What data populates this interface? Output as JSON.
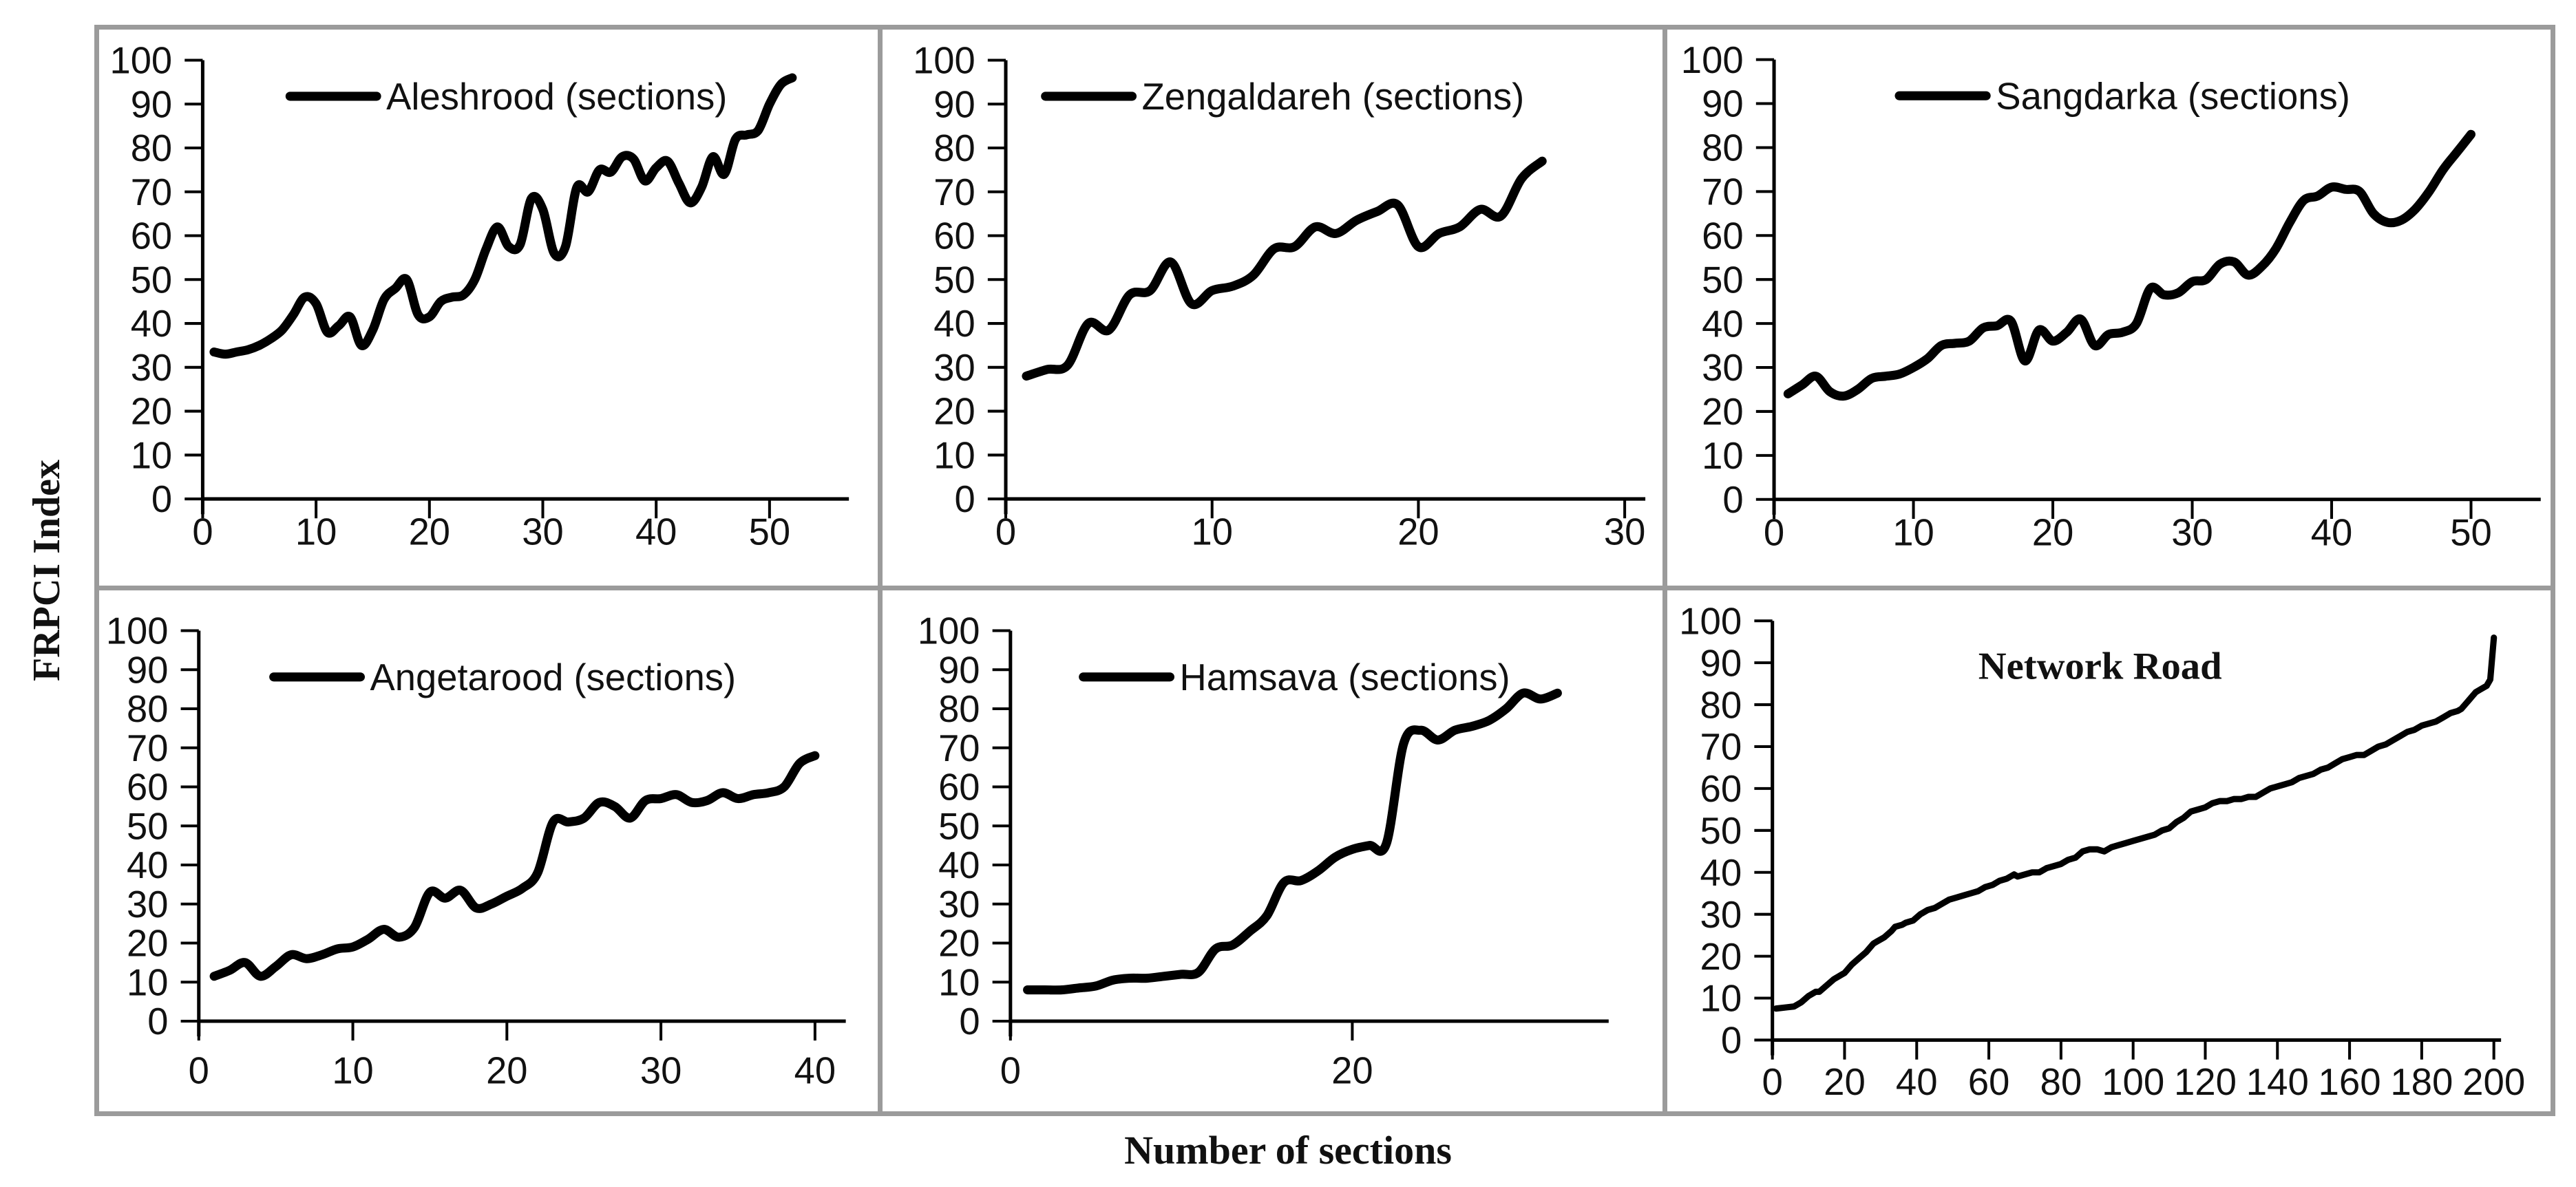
{
  "figure": {
    "ylabel": "FRPCI Index",
    "xlabel": "Number of sections",
    "background_color": "#ffffff",
    "panel_border_color": "#9b9b9b",
    "line_color": "#000000"
  },
  "chart_data": [
    {
      "type": "line",
      "legend": "Aleshrood (sections)",
      "legend_position": "top-center",
      "xlim": [
        0,
        57
      ],
      "ylim": [
        0,
        100
      ],
      "x_ticks": [
        0,
        10,
        20,
        30,
        40,
        50
      ],
      "y_tick_step": 10,
      "grid": false,
      "points": [
        [
          1,
          33.5
        ],
        [
          2,
          33
        ],
        [
          3,
          33.5
        ],
        [
          4,
          34
        ],
        [
          5,
          35
        ],
        [
          6,
          36.5
        ],
        [
          7,
          38.5
        ],
        [
          8,
          42
        ],
        [
          9,
          46
        ],
        [
          10,
          44.5
        ],
        [
          11,
          38
        ],
        [
          12,
          39.5
        ],
        [
          13,
          41.5
        ],
        [
          14,
          35
        ],
        [
          15,
          38.5
        ],
        [
          16,
          45.5
        ],
        [
          17,
          48
        ],
        [
          18,
          50
        ],
        [
          19,
          42
        ],
        [
          20,
          41.5
        ],
        [
          21,
          45
        ],
        [
          22,
          46
        ],
        [
          23,
          46.5
        ],
        [
          24,
          50
        ],
        [
          25,
          57
        ],
        [
          26,
          62
        ],
        [
          27,
          57.5
        ],
        [
          28,
          58
        ],
        [
          29,
          68.5
        ],
        [
          30,
          66
        ],
        [
          31,
          56
        ],
        [
          32,
          57.5
        ],
        [
          33,
          71
        ],
        [
          34,
          70
        ],
        [
          35,
          75
        ],
        [
          36,
          74.5
        ],
        [
          37,
          78
        ],
        [
          38,
          77.5
        ],
        [
          39,
          72.5
        ],
        [
          40,
          75.5
        ],
        [
          41,
          77
        ],
        [
          42,
          72
        ],
        [
          43,
          67.5
        ],
        [
          44,
          71
        ],
        [
          45,
          78
        ],
        [
          46,
          74
        ],
        [
          47,
          82
        ],
        [
          48,
          83
        ],
        [
          49,
          84
        ],
        [
          50,
          90
        ],
        [
          51,
          94.5
        ],
        [
          52,
          96
        ]
      ]
    },
    {
      "type": "line",
      "legend": "Zengaldareh (sections)",
      "legend_position": "top-center",
      "xlim": [
        0,
        31
      ],
      "ylim": [
        0,
        100
      ],
      "x_ticks": [
        0,
        10,
        20,
        30
      ],
      "y_tick_step": 10,
      "grid": false,
      "points": [
        [
          1,
          28
        ],
        [
          2,
          29.5
        ],
        [
          3,
          30.5
        ],
        [
          4,
          40
        ],
        [
          5,
          38.5
        ],
        [
          6,
          46.5
        ],
        [
          7,
          47.5
        ],
        [
          8,
          54
        ],
        [
          9,
          44.5
        ],
        [
          10,
          47.5
        ],
        [
          11,
          48.5
        ],
        [
          12,
          51
        ],
        [
          13,
          57
        ],
        [
          14,
          57.5
        ],
        [
          15,
          62
        ],
        [
          16,
          60.5
        ],
        [
          17,
          63.5
        ],
        [
          18,
          65.5
        ],
        [
          19,
          67
        ],
        [
          20,
          57.5
        ],
        [
          21,
          60.5
        ],
        [
          22,
          62
        ],
        [
          23,
          66
        ],
        [
          24,
          64.5
        ],
        [
          25,
          73
        ],
        [
          26,
          77
        ]
      ]
    },
    {
      "type": "line",
      "legend": "Sangdarka (sections)",
      "legend_position": "top-center",
      "xlim": [
        0,
        55
      ],
      "ylim": [
        0,
        100
      ],
      "x_ticks": [
        0,
        10,
        20,
        30,
        40,
        50
      ],
      "y_tick_step": 10,
      "grid": false,
      "points": [
        [
          1,
          24
        ],
        [
          2,
          26
        ],
        [
          3,
          28
        ],
        [
          4,
          24.5
        ],
        [
          5,
          23.5
        ],
        [
          6,
          25
        ],
        [
          7,
          27.5
        ],
        [
          8,
          28
        ],
        [
          9,
          28.5
        ],
        [
          10,
          30
        ],
        [
          11,
          32
        ],
        [
          12,
          35
        ],
        [
          13,
          35.5
        ],
        [
          14,
          36
        ],
        [
          15,
          39
        ],
        [
          16,
          39.5
        ],
        [
          17,
          40.5
        ],
        [
          18,
          31.5
        ],
        [
          19,
          38.5
        ],
        [
          20,
          36
        ],
        [
          21,
          38
        ],
        [
          22,
          41
        ],
        [
          23,
          35
        ],
        [
          24,
          37.5
        ],
        [
          25,
          38
        ],
        [
          26,
          40
        ],
        [
          27,
          48
        ],
        [
          28,
          46.5
        ],
        [
          29,
          47
        ],
        [
          30,
          49.5
        ],
        [
          31,
          50
        ],
        [
          32,
          53.5
        ],
        [
          33,
          54
        ],
        [
          34,
          51
        ],
        [
          35,
          53
        ],
        [
          36,
          57
        ],
        [
          37,
          63
        ],
        [
          38,
          68
        ],
        [
          39,
          69
        ],
        [
          40,
          71
        ],
        [
          41,
          70.5
        ],
        [
          42,
          70
        ],
        [
          43,
          65
        ],
        [
          44,
          63
        ],
        [
          45,
          63.5
        ],
        [
          46,
          66
        ],
        [
          47,
          70
        ],
        [
          48,
          75
        ],
        [
          49,
          79
        ],
        [
          50,
          83
        ]
      ]
    },
    {
      "type": "line",
      "legend": "Angetarood (sections)",
      "legend_position": "top-center",
      "xlim": [
        0,
        42
      ],
      "ylim": [
        0,
        100
      ],
      "x_ticks": [
        0,
        10,
        20,
        30,
        40
      ],
      "y_tick_step": 10,
      "grid": false,
      "points": [
        [
          1,
          11.5
        ],
        [
          2,
          13
        ],
        [
          3,
          15
        ],
        [
          4,
          11.5
        ],
        [
          5,
          14
        ],
        [
          6,
          17
        ],
        [
          7,
          16
        ],
        [
          8,
          17
        ],
        [
          9,
          18.5
        ],
        [
          10,
          19
        ],
        [
          11,
          21
        ],
        [
          12,
          23.5
        ],
        [
          13,
          21.5
        ],
        [
          14,
          24
        ],
        [
          15,
          33
        ],
        [
          16,
          31.5
        ],
        [
          17,
          33.5
        ],
        [
          18,
          29
        ],
        [
          19,
          30
        ],
        [
          20,
          32
        ],
        [
          21,
          34
        ],
        [
          22,
          38
        ],
        [
          23,
          51
        ],
        [
          24,
          51
        ],
        [
          25,
          52
        ],
        [
          26,
          56
        ],
        [
          27,
          55
        ],
        [
          28,
          52
        ],
        [
          29,
          56.5
        ],
        [
          30,
          57
        ],
        [
          31,
          58
        ],
        [
          32,
          56
        ],
        [
          33,
          56.5
        ],
        [
          34,
          58.5
        ],
        [
          35,
          57
        ],
        [
          36,
          58
        ],
        [
          37,
          58.5
        ],
        [
          38,
          60
        ],
        [
          39,
          66
        ],
        [
          40,
          68
        ]
      ]
    },
    {
      "type": "line",
      "legend": "Hamsava (sections)",
      "legend_position": "top-center",
      "xlim": [
        0,
        35
      ],
      "ylim": [
        0,
        100
      ],
      "x_ticks": [
        0,
        20
      ],
      "y_tick_step": 10,
      "grid": false,
      "points": [
        [
          1,
          8
        ],
        [
          2,
          8
        ],
        [
          3,
          8
        ],
        [
          4,
          8.5
        ],
        [
          5,
          9
        ],
        [
          6,
          10.5
        ],
        [
          7,
          11
        ],
        [
          8,
          11
        ],
        [
          9,
          11.5
        ],
        [
          10,
          12
        ],
        [
          11,
          12.5
        ],
        [
          12,
          18.5
        ],
        [
          13,
          19.5
        ],
        [
          14,
          23
        ],
        [
          15,
          27
        ],
        [
          16,
          35.5
        ],
        [
          17,
          36
        ],
        [
          18,
          38.5
        ],
        [
          19,
          42
        ],
        [
          20,
          44
        ],
        [
          21,
          45
        ],
        [
          22,
          45.5
        ],
        [
          23,
          71
        ],
        [
          24,
          74.5
        ],
        [
          25,
          72
        ],
        [
          26,
          74.5
        ],
        [
          27,
          75.5
        ],
        [
          28,
          77
        ],
        [
          29,
          80
        ],
        [
          30,
          84
        ],
        [
          31,
          82.5
        ],
        [
          32,
          84
        ]
      ]
    },
    {
      "type": "line",
      "title": "Network Road",
      "legend_position": "none",
      "xlim": [
        0,
        202
      ],
      "ylim": [
        0,
        100
      ],
      "x_ticks": [
        0,
        20,
        40,
        60,
        80,
        100,
        120,
        140,
        160,
        180,
        200
      ],
      "y_tick_step": 10,
      "grid": false,
      "points": [
        [
          1,
          7.5
        ],
        [
          4,
          7.8
        ],
        [
          6,
          8
        ],
        [
          8,
          9
        ],
        [
          10,
          10.5
        ],
        [
          12,
          11.5
        ],
        [
          13,
          11.5
        ],
        [
          15,
          13
        ],
        [
          17,
          14.5
        ],
        [
          19,
          15.5
        ],
        [
          20,
          16
        ],
        [
          22,
          18
        ],
        [
          24,
          19.5
        ],
        [
          26,
          21
        ],
        [
          28,
          23
        ],
        [
          29,
          23.5
        ],
        [
          31,
          24.5
        ],
        [
          33,
          26
        ],
        [
          34,
          27
        ],
        [
          36,
          27.5
        ],
        [
          37,
          28
        ],
        [
          39,
          28.5
        ],
        [
          41,
          30
        ],
        [
          43,
          31
        ],
        [
          45,
          31.5
        ],
        [
          47,
          32.5
        ],
        [
          49,
          33.5
        ],
        [
          51,
          34
        ],
        [
          53,
          34.5
        ],
        [
          55,
          35
        ],
        [
          57,
          35.5
        ],
        [
          59,
          36.5
        ],
        [
          61,
          37
        ],
        [
          63,
          38
        ],
        [
          65,
          38.5
        ],
        [
          67,
          39.5
        ],
        [
          68,
          39
        ],
        [
          70,
          39.5
        ],
        [
          72,
          40
        ],
        [
          74,
          40
        ],
        [
          76,
          41
        ],
        [
          78,
          41.5
        ],
        [
          80,
          42
        ],
        [
          82,
          43
        ],
        [
          84,
          43.5
        ],
        [
          86,
          45
        ],
        [
          88,
          45.5
        ],
        [
          90,
          45.5
        ],
        [
          92,
          45
        ],
        [
          94,
          46
        ],
        [
          96,
          46.5
        ],
        [
          98,
          47
        ],
        [
          100,
          47.5
        ],
        [
          102,
          48
        ],
        [
          104,
          48.5
        ],
        [
          106,
          49
        ],
        [
          108,
          50
        ],
        [
          110,
          50.5
        ],
        [
          112,
          52
        ],
        [
          114,
          53
        ],
        [
          116,
          54.5
        ],
        [
          118,
          55
        ],
        [
          120,
          55.5
        ],
        [
          122,
          56.5
        ],
        [
          124,
          57
        ],
        [
          126,
          57
        ],
        [
          128,
          57.5
        ],
        [
          130,
          57.5
        ],
        [
          132,
          58
        ],
        [
          134,
          58
        ],
        [
          136,
          59
        ],
        [
          138,
          60
        ],
        [
          140,
          60.5
        ],
        [
          142,
          61
        ],
        [
          144,
          61.5
        ],
        [
          146,
          62.5
        ],
        [
          148,
          63
        ],
        [
          150,
          63.5
        ],
        [
          152,
          64.5
        ],
        [
          154,
          65
        ],
        [
          156,
          66
        ],
        [
          158,
          67
        ],
        [
          160,
          67.5
        ],
        [
          162,
          68
        ],
        [
          164,
          68
        ],
        [
          166,
          69
        ],
        [
          168,
          70
        ],
        [
          170,
          70.5
        ],
        [
          172,
          71.5
        ],
        [
          174,
          72.5
        ],
        [
          176,
          73.5
        ],
        [
          178,
          74
        ],
        [
          180,
          75
        ],
        [
          182,
          75.5
        ],
        [
          184,
          76
        ],
        [
          186,
          77
        ],
        [
          188,
          78
        ],
        [
          190,
          78.5
        ],
        [
          191,
          79
        ],
        [
          192,
          80
        ],
        [
          193,
          81
        ],
        [
          194,
          82
        ],
        [
          195,
          83
        ],
        [
          196,
          83.5
        ],
        [
          197,
          84
        ],
        [
          198,
          84.5
        ],
        [
          199,
          86
        ],
        [
          200,
          96
        ]
      ]
    }
  ]
}
